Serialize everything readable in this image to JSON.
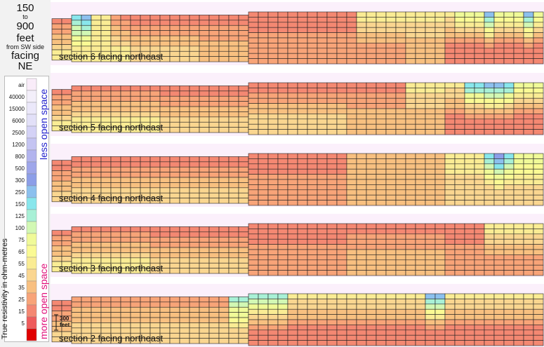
{
  "title": {
    "l1": "150",
    "l2": "to",
    "l3": "900",
    "l4": "feet",
    "l5": "from SW side",
    "l6": "facing",
    "l7": "NE"
  },
  "legend": {
    "axis_title": "True resistivity in ohm-metres",
    "upper_label": "less open space",
    "lower_label": "more open space",
    "upper_color": "#2222cc",
    "lower_color": "#e0107a",
    "levels": [
      {
        "label": "air",
        "color": "#f9ecf9"
      },
      {
        "label": "40000",
        "color": "#f3effa"
      },
      {
        "label": "15000",
        "color": "#ebe8fa"
      },
      {
        "label": "6000",
        "color": "#e2e0f8"
      },
      {
        "label": "2500",
        "color": "#d4d2f6"
      },
      {
        "label": "1200",
        "color": "#c4c4f2"
      },
      {
        "label": "800",
        "color": "#b2b4ee"
      },
      {
        "label": "500",
        "color": "#9ea6ea"
      },
      {
        "label": "300",
        "color": "#8c9ee8"
      },
      {
        "label": "250",
        "color": "#8cc0ee"
      },
      {
        "label": "150",
        "color": "#88e6ec"
      },
      {
        "label": "125",
        "color": "#a8f0d6"
      },
      {
        "label": "100",
        "color": "#d2f8b4"
      },
      {
        "label": "75",
        "color": "#f0fa98"
      },
      {
        "label": "65",
        "color": "#fafa94"
      },
      {
        "label": "55",
        "color": "#faec94"
      },
      {
        "label": "45",
        "color": "#fad690"
      },
      {
        "label": "35",
        "color": "#f8c080"
      },
      {
        "label": "25",
        "color": "#f8a478"
      },
      {
        "label": "15",
        "color": "#f48872"
      },
      {
        "label": "5",
        "color": "#ee5c5c"
      },
      {
        "label": "",
        "color": "#e00000"
      }
    ]
  },
  "scale_bar": {
    "l1": "300",
    "l2": "feet"
  },
  "chart_data": {
    "type": "heatmap",
    "title": "150 to 900 feet from SW side facing NE",
    "ylabel": "True resistivity in ohm-metres",
    "value_units": "ohm-metres",
    "classes": [
      "air",
      "40000",
      "15000",
      "6000",
      "2500",
      "1200",
      "800",
      "500",
      "300",
      "250",
      "150",
      "125",
      "100",
      "75",
      "65",
      "55",
      "45",
      "35",
      "25",
      "15",
      "5"
    ],
    "sections": [
      {
        "label": "section 6 facing northeast",
        "columns": 50,
        "rows": 10,
        "surface_row": [
          2,
          2,
          1,
          1,
          1,
          1,
          1,
          1,
          1,
          1,
          1,
          1,
          1,
          1,
          1,
          1,
          1,
          1,
          1,
          1,
          0,
          0,
          0,
          0,
          0,
          0,
          0,
          0,
          0,
          0,
          0,
          0,
          0,
          0,
          0,
          0,
          0,
          0,
          0,
          0,
          0,
          0,
          0,
          0,
          0,
          0,
          0,
          0,
          0,
          0
        ],
        "top_class": [
          "15",
          "15",
          "150",
          "250",
          "55",
          "55",
          "25",
          "15",
          "15",
          "15",
          "15",
          "15",
          "15",
          "15",
          "15",
          "15",
          "15",
          "15",
          "15",
          "15",
          "15",
          "15",
          "15",
          "15",
          "15",
          "15",
          "15",
          "15",
          "15",
          "15",
          "15",
          "55",
          "55",
          "55",
          "55",
          "55",
          "55",
          "55",
          "55",
          "55",
          "55",
          "75",
          "75",
          "75",
          "250",
          "75",
          "75",
          "75",
          "250",
          "75"
        ],
        "deep_class": [
          "55",
          "55",
          "55",
          "55",
          "55",
          "55",
          "55",
          "55",
          "45",
          "45",
          "45",
          "45",
          "45",
          "45",
          "45",
          "35",
          "35",
          "35",
          "35",
          "35",
          "25",
          "25",
          "25",
          "25",
          "25",
          "25",
          "25",
          "25",
          "25",
          "25",
          "25",
          "25",
          "25",
          "25",
          "25",
          "25",
          "35",
          "35",
          "35",
          "35",
          "15",
          "15",
          "15",
          "15",
          "15",
          "15",
          "15",
          "15",
          "15",
          "15"
        ]
      },
      {
        "label": "section 5 facing northeast",
        "columns": 50,
        "rows": 10,
        "surface_row": [
          2,
          2,
          1,
          1,
          1,
          1,
          1,
          1,
          1,
          1,
          1,
          1,
          1,
          1,
          1,
          1,
          1,
          1,
          1,
          1,
          0,
          0,
          0,
          0,
          0,
          0,
          0,
          0,
          0,
          0,
          0,
          0,
          0,
          0,
          0,
          0,
          0,
          0,
          0,
          0,
          0,
          0,
          0,
          0,
          0,
          0,
          0,
          0,
          0,
          0
        ],
        "top_class": [
          "15",
          "15",
          "15",
          "15",
          "15",
          "15",
          "15",
          "15",
          "15",
          "15",
          "15",
          "15",
          "15",
          "15",
          "15",
          "15",
          "15",
          "15",
          "15",
          "15",
          "15",
          "15",
          "15",
          "15",
          "15",
          "15",
          "15",
          "15",
          "15",
          "15",
          "15",
          "15",
          "15",
          "15",
          "15",
          "15",
          "55",
          "55",
          "55",
          "55",
          "55",
          "55",
          "150",
          "150",
          "250",
          "250",
          "150",
          "75",
          "75",
          "75"
        ],
        "deep_class": [
          "55",
          "55",
          "55",
          "55",
          "55",
          "55",
          "55",
          "55",
          "55",
          "55",
          "55",
          "45",
          "45",
          "45",
          "45",
          "45",
          "45",
          "45",
          "45",
          "45",
          "45",
          "45",
          "45",
          "45",
          "45",
          "45",
          "45",
          "45",
          "45",
          "45",
          "35",
          "35",
          "35",
          "35",
          "35",
          "35",
          "35",
          "35",
          "35",
          "35",
          "15",
          "15",
          "15",
          "15",
          "15",
          "15",
          "15",
          "15",
          "15",
          "15"
        ]
      },
      {
        "label": "section 4 facing northeast",
        "columns": 50,
        "rows": 10,
        "surface_row": [
          2,
          2,
          1,
          1,
          1,
          1,
          1,
          1,
          1,
          1,
          1,
          1,
          1,
          1,
          1,
          1,
          1,
          1,
          1,
          1,
          0,
          0,
          0,
          0,
          0,
          0,
          0,
          0,
          0,
          0,
          0,
          0,
          0,
          0,
          0,
          0,
          0,
          0,
          0,
          0,
          0,
          0,
          0,
          0,
          0,
          0,
          0,
          0,
          0,
          0
        ],
        "top_class": [
          "15",
          "15",
          "15",
          "15",
          "15",
          "15",
          "15",
          "15",
          "15",
          "15",
          "15",
          "15",
          "15",
          "15",
          "15",
          "15",
          "15",
          "15",
          "15",
          "15",
          "15",
          "15",
          "15",
          "15",
          "15",
          "15",
          "15",
          "15",
          "15",
          "15",
          "35",
          "35",
          "35",
          "35",
          "35",
          "35",
          "35",
          "35",
          "35",
          "35",
          "55",
          "55",
          "55",
          "55",
          "150",
          "300",
          "150",
          "75",
          "75",
          "75"
        ],
        "deep_class": [
          "45",
          "45",
          "45",
          "45",
          "45",
          "45",
          "45",
          "45",
          "45",
          "45",
          "45",
          "45",
          "45",
          "45",
          "45",
          "45",
          "45",
          "45",
          "45",
          "45",
          "25",
          "25",
          "25",
          "25",
          "25",
          "25",
          "25",
          "25",
          "25",
          "25",
          "35",
          "35",
          "35",
          "35",
          "35",
          "35",
          "35",
          "35",
          "35",
          "35",
          "45",
          "45",
          "45",
          "45",
          "45",
          "45",
          "45",
          "45",
          "45",
          "45"
        ]
      },
      {
        "label": "section 3 facing northeast",
        "columns": 50,
        "rows": 10,
        "surface_row": [
          2,
          2,
          1,
          1,
          1,
          1,
          1,
          1,
          1,
          1,
          1,
          1,
          1,
          1,
          1,
          1,
          1,
          1,
          1,
          1,
          0,
          0,
          0,
          0,
          0,
          0,
          0,
          0,
          0,
          0,
          0,
          0,
          0,
          0,
          0,
          0,
          0,
          0,
          0,
          0,
          0,
          0,
          0,
          0,
          0,
          0,
          0,
          0,
          0,
          0
        ],
        "top_class": [
          "15",
          "15",
          "15",
          "15",
          "15",
          "15",
          "15",
          "15",
          "15",
          "15",
          "15",
          "15",
          "15",
          "15",
          "15",
          "15",
          "15",
          "15",
          "15",
          "15",
          "15",
          "15",
          "15",
          "15",
          "15",
          "15",
          "15",
          "15",
          "15",
          "15",
          "15",
          "15",
          "15",
          "15",
          "15",
          "15",
          "15",
          "15",
          "15",
          "15",
          "15",
          "15",
          "15",
          "15",
          "55",
          "55",
          "55",
          "55",
          "55",
          "55"
        ],
        "deep_class": [
          "55",
          "55",
          "55",
          "55",
          "55",
          "55",
          "55",
          "55",
          "55",
          "55",
          "45",
          "45",
          "45",
          "45",
          "45",
          "45",
          "45",
          "45",
          "45",
          "45",
          "25",
          "25",
          "25",
          "25",
          "25",
          "25",
          "25",
          "25",
          "25",
          "25",
          "35",
          "35",
          "35",
          "35",
          "35",
          "35",
          "35",
          "35",
          "35",
          "35",
          "25",
          "25",
          "25",
          "25",
          "25",
          "25",
          "25",
          "25",
          "25",
          "25"
        ]
      },
      {
        "label": "section 2 facing northeast",
        "columns": 50,
        "rows": 10,
        "surface_row": [
          2,
          2,
          1,
          1,
          1,
          1,
          1,
          1,
          1,
          1,
          1,
          1,
          1,
          1,
          1,
          1,
          1,
          1,
          1,
          1,
          0,
          0,
          0,
          0,
          0,
          0,
          0,
          0,
          0,
          0,
          0,
          0,
          0,
          0,
          0,
          0,
          0,
          0,
          0,
          0,
          0,
          0,
          0,
          0,
          0,
          0,
          0,
          0,
          0,
          0
        ],
        "top_class": [
          "15",
          "15",
          "25",
          "25",
          "25",
          "25",
          "25",
          "25",
          "25",
          "25",
          "25",
          "25",
          "25",
          "25",
          "25",
          "25",
          "25",
          "25",
          "125",
          "125",
          "125",
          "125",
          "125",
          "125",
          "55",
          "55",
          "55",
          "55",
          "55",
          "55",
          "55",
          "55",
          "55",
          "55",
          "55",
          "55",
          "55",
          "55",
          "250",
          "250",
          "55",
          "55",
          "55",
          "55",
          "55",
          "55",
          "55",
          "55",
          "55",
          "55"
        ],
        "deep_class": [
          "45",
          "45",
          "45",
          "45",
          "45",
          "45",
          "45",
          "45",
          "45",
          "45",
          "45",
          "45",
          "45",
          "45",
          "45",
          "45",
          "45",
          "45",
          "45",
          "45",
          "15",
          "15",
          "15",
          "15",
          "15",
          "15",
          "15",
          "15",
          "15",
          "15",
          "15",
          "15",
          "15",
          "15",
          "15",
          "15",
          "15",
          "15",
          "15",
          "15",
          "15",
          "15",
          "15",
          "15",
          "15",
          "15",
          "15",
          "15",
          "15",
          "15"
        ]
      }
    ]
  }
}
